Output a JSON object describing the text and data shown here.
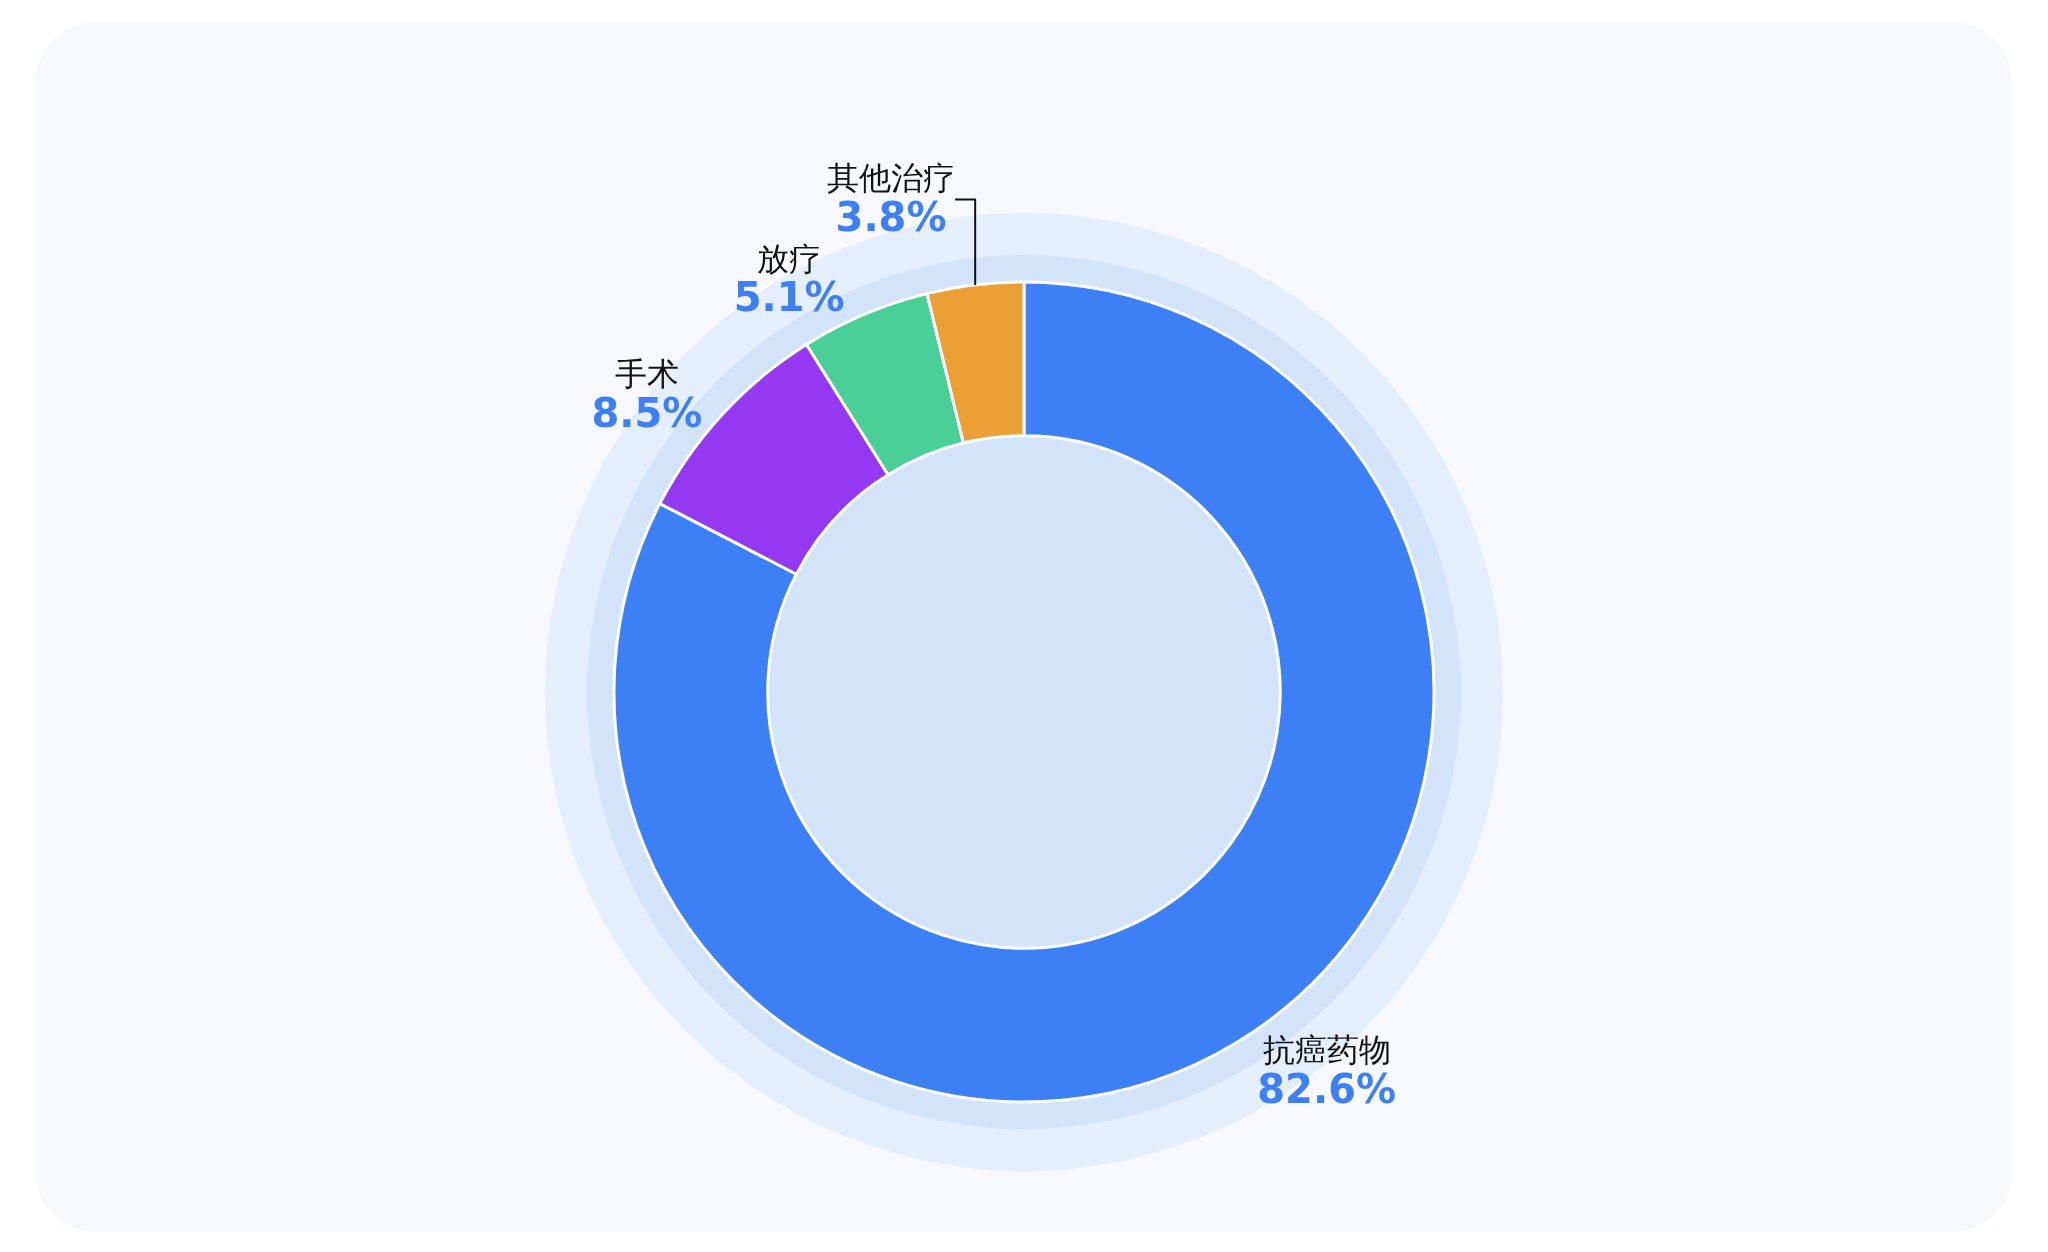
{
  "chart_data": {
    "type": "donut",
    "categories": [
      "抗癌药物",
      "手术",
      "放疗",
      "其他治疗"
    ],
    "values": [
      82.6,
      8.5,
      5.1,
      3.8
    ],
    "value_labels": [
      "82.6%",
      "8.5%",
      "5.1%",
      "3.8%"
    ],
    "colors": [
      "#3d80f5",
      "#9438f2",
      "#4bcf99",
      "#eb9f35"
    ]
  }
}
